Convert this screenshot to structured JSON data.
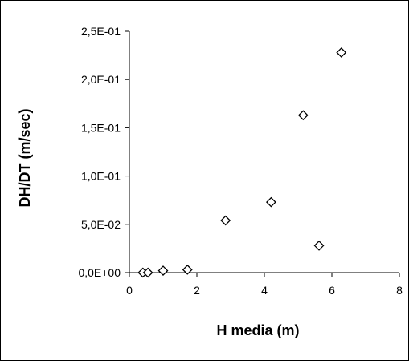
{
  "chart_data": {
    "type": "scatter",
    "xlabel": "H media (m)",
    "ylabel": "DH/DT (m/sec)",
    "xlim": [
      0,
      8
    ],
    "ylim": [
      0,
      0.25
    ],
    "x_ticks": [
      0,
      2,
      4,
      6,
      8
    ],
    "x_tick_labels": [
      "0",
      "2",
      "4",
      "6",
      "8"
    ],
    "y_ticks": [
      0,
      0.05,
      0.1,
      0.15,
      0.2,
      0.25
    ],
    "y_tick_labels": [
      "0,0E+00",
      "5,0E-02",
      "1,0E-01",
      "1,5E-01",
      "2,0E-01",
      "2,5E-01"
    ],
    "grid": false,
    "legend": "none",
    "marker": "diamond-open",
    "series": [
      {
        "points": [
          {
            "x": 0.4,
            "y": 0.0
          },
          {
            "x": 0.55,
            "y": 0.0
          },
          {
            "x": 1.0,
            "y": 0.002
          },
          {
            "x": 1.72,
            "y": 0.003
          },
          {
            "x": 2.85,
            "y": 0.054
          },
          {
            "x": 4.2,
            "y": 0.073
          },
          {
            "x": 5.15,
            "y": 0.163
          },
          {
            "x": 5.62,
            "y": 0.028
          },
          {
            "x": 6.28,
            "y": 0.228
          }
        ]
      }
    ]
  }
}
